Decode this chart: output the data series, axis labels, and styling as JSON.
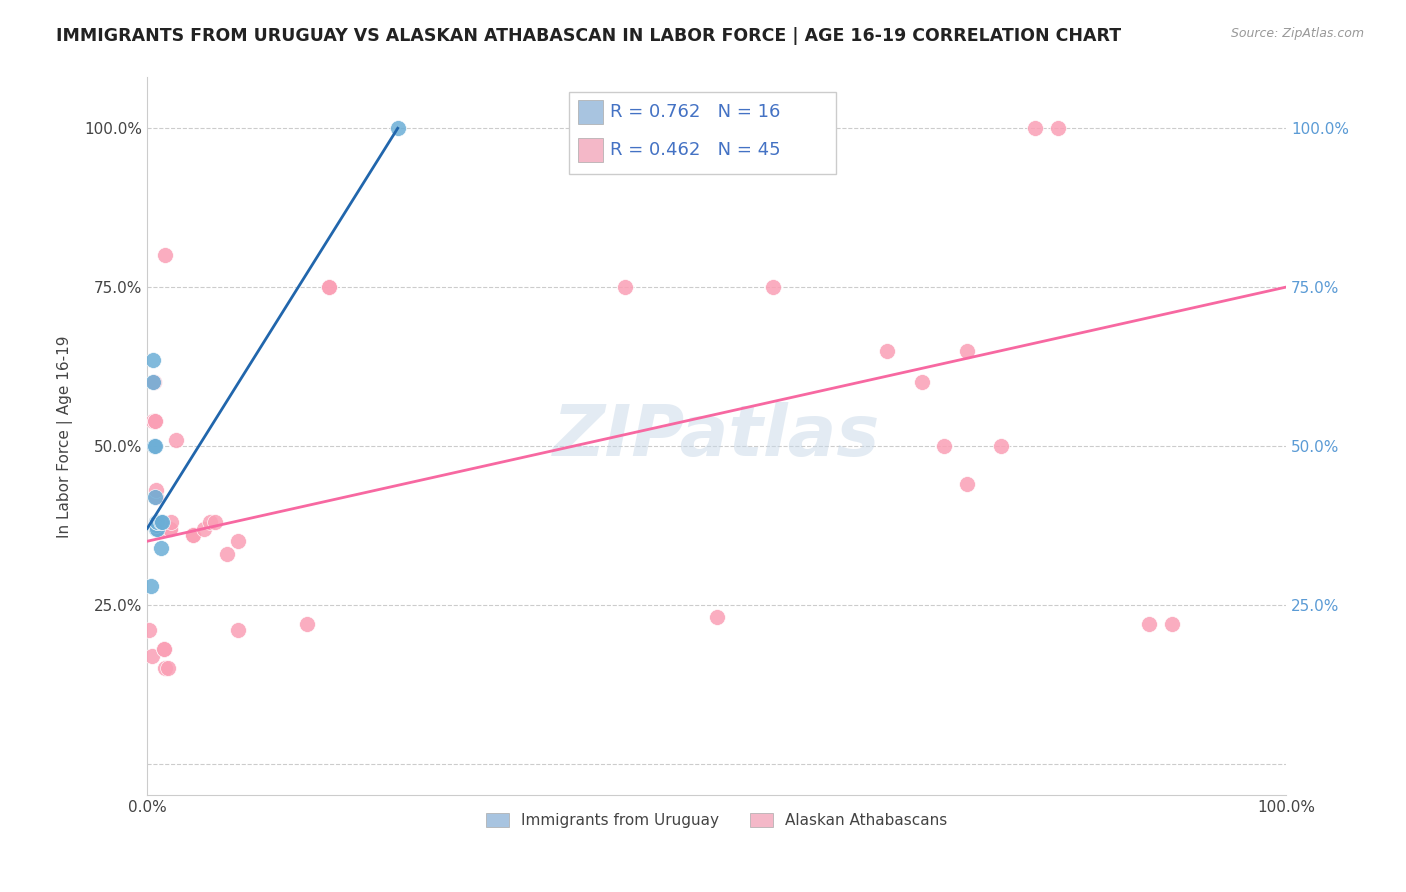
{
  "title": "IMMIGRANTS FROM URUGUAY VS ALASKAN ATHABASCAN IN LABOR FORCE | AGE 16-19 CORRELATION CHART",
  "source": "Source: ZipAtlas.com",
  "ylabel": "In Labor Force | Age 16-19",
  "xlim": [
    0,
    1
  ],
  "ylim": [
    -0.05,
    1.08
  ],
  "right_ytick_color": "#5b9bd5",
  "legend_color1": "#a8c4e0",
  "legend_color2": "#f4b8c8",
  "scatter_color1": "#6baed6",
  "scatter_color2": "#fa9fb5",
  "line_color1": "#2166ac",
  "line_color2": "#f768a1",
  "watermark": "ZIPatlas",
  "background_color": "#ffffff",
  "grid_color": "#cccccc",
  "blue_x": [
    0.003,
    0.005,
    0.005,
    0.006,
    0.007,
    0.007,
    0.008,
    0.008,
    0.008,
    0.009,
    0.009,
    0.009,
    0.012,
    0.012,
    0.013,
    0.22
  ],
  "blue_y": [
    0.28,
    0.635,
    0.6,
    0.5,
    0.5,
    0.42,
    0.38,
    0.37,
    0.375,
    0.37,
    0.38,
    0.38,
    0.38,
    0.34,
    0.38,
    1.0
  ],
  "pink_x": [
    0.002,
    0.004,
    0.005,
    0.006,
    0.007,
    0.007,
    0.008,
    0.008,
    0.008,
    0.01,
    0.012,
    0.013,
    0.015,
    0.015,
    0.016,
    0.016,
    0.018,
    0.02,
    0.02,
    0.021,
    0.025,
    0.04,
    0.04,
    0.05,
    0.055,
    0.06,
    0.07,
    0.08,
    0.08,
    0.14,
    0.16,
    0.16,
    0.42,
    0.5,
    0.55,
    0.65,
    0.68,
    0.7,
    0.72,
    0.72,
    0.75,
    0.78,
    0.8,
    0.88,
    0.9
  ],
  "pink_y": [
    0.21,
    0.17,
    0.54,
    0.6,
    0.54,
    0.54,
    0.38,
    0.42,
    0.43,
    0.37,
    0.37,
    0.38,
    0.18,
    0.18,
    0.8,
    0.15,
    0.15,
    0.37,
    0.37,
    0.38,
    0.51,
    0.36,
    0.36,
    0.37,
    0.38,
    0.38,
    0.33,
    0.35,
    0.21,
    0.22,
    0.75,
    0.75,
    0.75,
    0.23,
    0.75,
    0.65,
    0.6,
    0.5,
    0.65,
    0.44,
    0.5,
    1.0,
    1.0,
    0.22,
    0.22
  ],
  "blue_line_x": [
    0.0,
    0.22
  ],
  "blue_line_y": [
    0.37,
    1.0
  ],
  "pink_line_x": [
    0.0,
    1.0
  ],
  "pink_line_y": [
    0.35,
    0.75
  ]
}
